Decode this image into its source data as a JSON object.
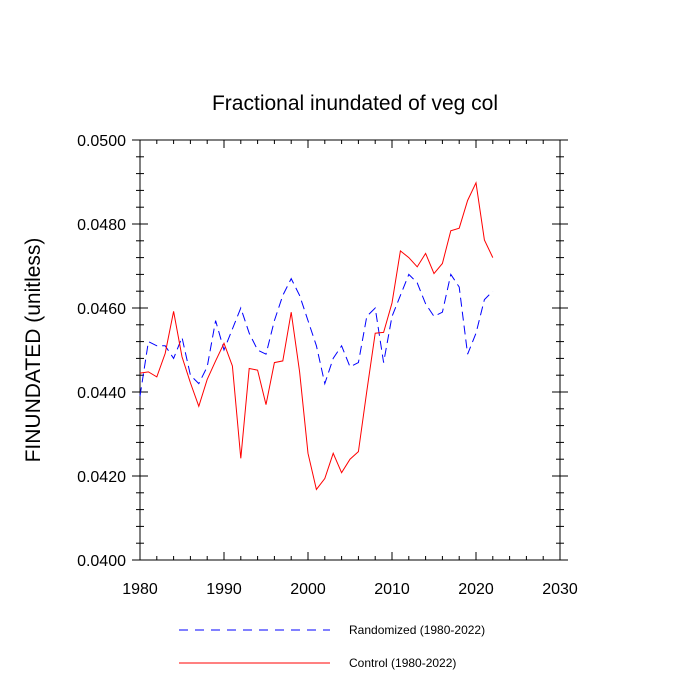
{
  "chart_data": {
    "type": "line",
    "title": "Fractional inundated of veg col",
    "xlabel": "",
    "ylabel": "FINUNDATED  (unitless)",
    "xlim": [
      1980,
      2030
    ],
    "ylim": [
      0.04,
      0.05
    ],
    "x_ticks": [
      1980,
      1990,
      2000,
      2010,
      2020,
      2030
    ],
    "x_tick_labels": [
      "1980",
      "1990",
      "2000",
      "2010",
      "2020",
      "2030"
    ],
    "y_ticks": [
      0.04,
      0.042,
      0.044,
      0.046,
      0.048,
      0.05
    ],
    "y_tick_labels": [
      "0.0400",
      "0.0420",
      "0.0440",
      "0.0460",
      "0.0480",
      "0.0500"
    ],
    "x": [
      1980,
      1981,
      1982,
      1983,
      1984,
      1985,
      1986,
      1987,
      1988,
      1989,
      1990,
      1991,
      1992,
      1993,
      1994,
      1995,
      1996,
      1997,
      1998,
      1999,
      2000,
      2001,
      2002,
      2003,
      2004,
      2005,
      2006,
      2007,
      2008,
      2009,
      2010,
      2011,
      2012,
      2013,
      2014,
      2015,
      2016,
      2017,
      2018,
      2019,
      2020,
      2021,
      2022
    ],
    "series": [
      {
        "name": "Randomized (1980-2022)",
        "color": "#0000ff",
        "style": "dashed",
        "values": [
          0.0439,
          0.0452,
          0.0451,
          0.0451,
          0.0448,
          0.0453,
          0.0444,
          0.0442,
          0.0446,
          0.0457,
          0.045,
          0.0455,
          0.046,
          0.0454,
          0.045,
          0.0449,
          0.0457,
          0.0463,
          0.0467,
          0.0463,
          0.0457,
          0.0451,
          0.0442,
          0.0448,
          0.0451,
          0.0446,
          0.0447,
          0.0458,
          0.046,
          0.0447,
          0.0458,
          0.0463,
          0.0468,
          0.0466,
          0.0461,
          0.0458,
          0.0459,
          0.0468,
          0.0465,
          0.0449,
          0.0454,
          0.0462,
          0.0464
        ]
      },
      {
        "name": "Control (1980-2022)",
        "color": "#ff0000",
        "style": "solid",
        "values": [
          0.04445,
          0.04448,
          0.04436,
          0.04492,
          0.04592,
          0.04484,
          0.04422,
          0.04366,
          0.0443,
          0.04474,
          0.04516,
          0.04462,
          0.04242,
          0.04456,
          0.04452,
          0.0437,
          0.0447,
          0.04474,
          0.0459,
          0.04448,
          0.04254,
          0.04168,
          0.04194,
          0.04254,
          0.04208,
          0.0424,
          0.04258,
          0.04402,
          0.0454,
          0.04542,
          0.04612,
          0.04736,
          0.0472,
          0.04698,
          0.0473,
          0.04682,
          0.04706,
          0.04784,
          0.0479,
          0.04856,
          0.04898,
          0.04762,
          0.0472
        ]
      }
    ],
    "legend_position": "bottom"
  }
}
